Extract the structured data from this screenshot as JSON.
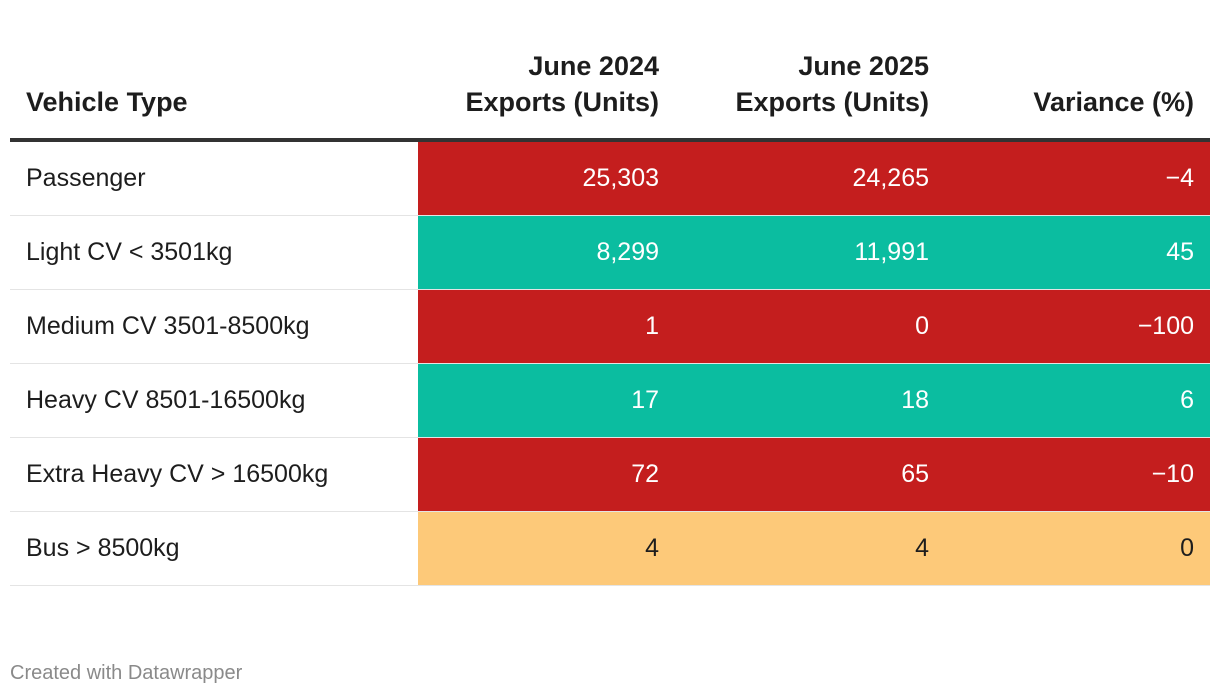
{
  "chart_data": {
    "type": "table",
    "columns": [
      "Vehicle Type",
      "June 2024\nExports (Units)",
      "June 2025\nExports (Units)",
      "Variance (%)"
    ],
    "rows": [
      {
        "label": "Passenger",
        "values": [
          "25,303",
          "24,265",
          "−4"
        ],
        "color": "#c41e1e",
        "text_color": "#ffffff"
      },
      {
        "label": "Light CV < 3501kg",
        "values": [
          "8,299",
          "11,991",
          "45"
        ],
        "color": "#0bbda0",
        "text_color": "#ffffff"
      },
      {
        "label": "Medium CV 3501-8500kg",
        "values": [
          "1",
          "0",
          "−100"
        ],
        "color": "#c41e1e",
        "text_color": "#ffffff"
      },
      {
        "label": "Heavy CV 8501-16500kg",
        "values": [
          "17",
          "18",
          "6"
        ],
        "color": "#0bbda0",
        "text_color": "#ffffff"
      },
      {
        "label": "Extra Heavy CV > 16500kg",
        "values": [
          "72",
          "65",
          "−10"
        ],
        "color": "#c41e1e",
        "text_color": "#ffffff"
      },
      {
        "label": "Bus > 8500kg",
        "values": [
          "4",
          "4",
          "0"
        ],
        "color": "#fdc979",
        "text_color": "#1d1d1d"
      }
    ]
  },
  "footer": "Created with Datawrapper"
}
